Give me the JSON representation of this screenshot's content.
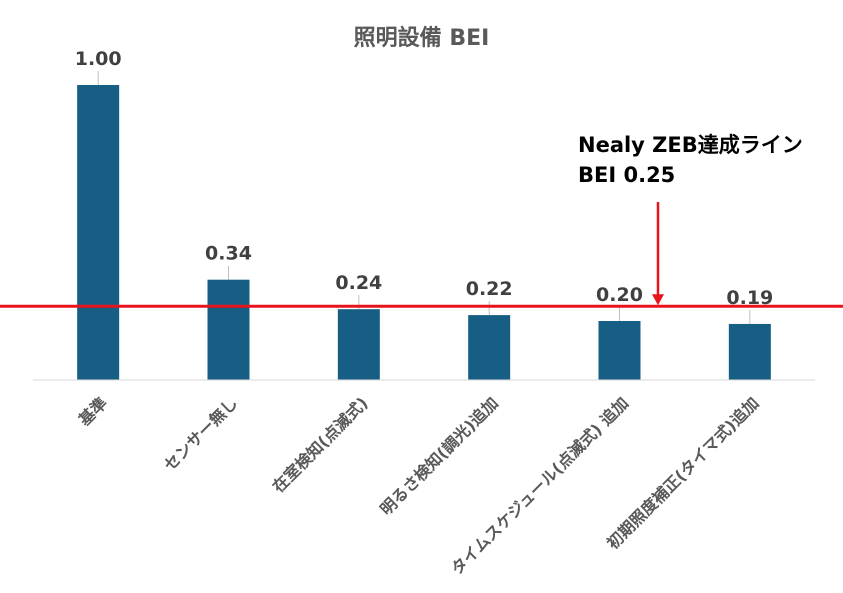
{
  "chart_data": {
    "type": "bar",
    "title": "照明設備 BEI",
    "categories": [
      "基準",
      "センサー無し",
      "在室検知(点滅式)",
      "明るさ検知(調光)追加",
      "タイムスケジュール(点滅式) 追加",
      "初期照度補正(タイマ式)追加"
    ],
    "values": [
      1.0,
      0.34,
      0.24,
      0.22,
      0.2,
      0.19
    ],
    "value_labels": [
      "1.00",
      "0.34",
      "0.24",
      "0.22",
      "0.20",
      "0.19"
    ],
    "ylim": [
      0,
      1.0
    ],
    "grid": false,
    "legend": "none",
    "bar_color": "#175E84",
    "reference_line": {
      "value": 0.25,
      "color": "#E8141B",
      "label_lines": [
        "Nealy ZEB達成ライン",
        "BEI  0.25"
      ]
    }
  }
}
